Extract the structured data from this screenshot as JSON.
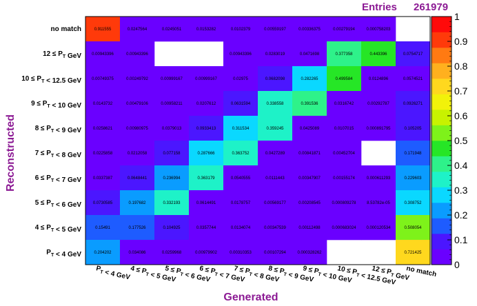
{
  "stats": {
    "entries_label": "Entries",
    "entries_value": "261979"
  },
  "chart_data": {
    "type": "heatmap",
    "xlabel": "Generated",
    "ylabel": "Reconstructed",
    "x_categories": [
      "P_T < 4 GeV",
      "4 ≤ P_T < 5 GeV",
      "5 ≤ P_T < 6 GeV",
      "6 ≤ P_T < 7 GeV",
      "7 ≤ P_T < 8 GeV",
      "8 ≤ P_T < 9 GeV",
      "9 ≤ P_T < 10 GeV",
      "10 ≤ P_T < 12.5 GeV",
      "12 ≤ P_T GeV",
      "no match"
    ],
    "y_categories": [
      "no match",
      "12 ≤ P_T GeV",
      "10 ≤ P_T < 12.5 GeV",
      "9 ≤ P_T < 10 GeV",
      "8 ≤ P_T < 9 GeV",
      "7 ≤ P_T < 8 GeV",
      "6 ≤ P_T < 7 GeV",
      "5 ≤ P_T < 6 GeV",
      "4 ≤ P_T < 5 GeV",
      "P_T < 4 GeV"
    ],
    "values": [
      [
        "0.911555",
        "0.0247564",
        "0.0245051",
        "0.0153282",
        "0.0102379",
        "0.00559197",
        "0.00336375",
        "0.00279194",
        "0.000758203",
        null
      ],
      [
        "0.00943396",
        "0.00943396",
        null,
        null,
        "0.00943396",
        "0.0283019",
        "0.0471698",
        "0.377358",
        "0.443396",
        "0.0754717"
      ],
      [
        "0.00749375",
        "0.00249792",
        "0.00999167",
        "0.00999167",
        "0.02975",
        "0.0682098",
        "0.282265",
        "0.499584",
        "0.0124896",
        "0.0574521"
      ],
      [
        "0.0143732",
        "0.00479106",
        "0.00958211",
        "0.0207612",
        "0.0631594",
        "0.338558",
        "0.391536",
        "0.0316742",
        "0.00292787",
        "0.0926271"
      ],
      [
        "0.0258621",
        "0.00980975",
        "0.0379013",
        "0.0933413",
        "0.311534",
        "0.359245",
        "0.0425089",
        "0.0107015",
        "0.000891795",
        "0.105205"
      ],
      [
        "0.0225858",
        "0.0212058",
        "0.077158",
        "0.287666",
        "0.363752",
        "0.0427289",
        "0.00841871",
        "0.00452704",
        null,
        "0.171948"
      ],
      [
        "0.0337387",
        "0.0648441",
        "0.236994",
        "0.363179",
        "0.0540555",
        "0.0111443",
        "0.00347907",
        "0.00155174",
        "0.000611293",
        "0.229603"
      ],
      [
        "0.0730585",
        "0.197682",
        "0.332193",
        "0.0614491",
        "0.0178757",
        "0.00569177",
        "0.00208545",
        "0.000809278",
        "8.53782e-05",
        "0.308752"
      ],
      [
        "0.15491",
        "0.177526",
        "0.104925",
        "0.0357744",
        "0.0134074",
        "0.00347539",
        "0.00112498",
        "0.000683024",
        "0.000120534",
        "0.508054"
      ],
      [
        "0.204202",
        "0.034086",
        "0.0259968",
        "0.00979902",
        "0.00310353",
        "0.00107294",
        "0.000328262",
        null,
        null,
        "0.721425"
      ]
    ],
    "zlim": [
      0,
      1
    ],
    "colorbar_ticks": [
      "0",
      "0.1",
      "0.2",
      "0.3",
      "0.4",
      "0.5",
      "0.6",
      "0.7",
      "0.8",
      "0.9",
      "1"
    ],
    "colors": {
      "palette": [
        "#6a00ff",
        "#4b16ff",
        "#1e5cff",
        "#0a9cff",
        "#0ad8ff",
        "#1ef2c8",
        "#2ef28a",
        "#26e626",
        "#7ef21a",
        "#c8f200",
        "#f2f20a",
        "#ffd81e",
        "#ffb01e",
        "#ff7a12",
        "#ff3a0a",
        "#ff0a0a"
      ],
      "label": "#8c1a94",
      "text": "#000000"
    }
  }
}
